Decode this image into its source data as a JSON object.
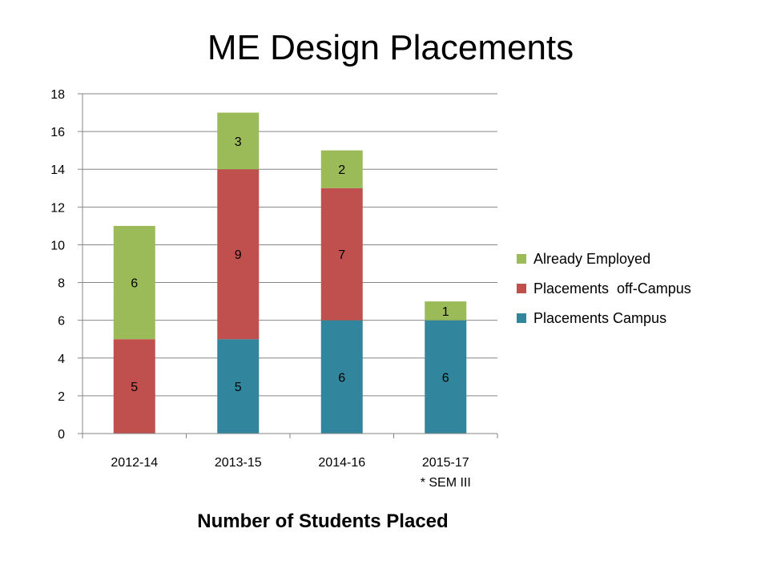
{
  "title": "ME Design Placements",
  "chart_data": {
    "type": "bar",
    "stacked": true,
    "title": "ME Design Placements",
    "xlabel": "Number of Students Placed",
    "ylabel": "",
    "categories": [
      "2012-14",
      "2013-15",
      "2014-16",
      "2015-17"
    ],
    "category_note": "* SEM III",
    "ylim": [
      0,
      18
    ],
    "yticks": [
      0,
      2,
      4,
      6,
      8,
      10,
      12,
      14,
      16,
      18
    ],
    "grid": true,
    "legend": "right",
    "series": [
      {
        "name": "Placements Campus",
        "color": "#31859C",
        "values": [
          0,
          5,
          6,
          6
        ]
      },
      {
        "name": "Placements  off-Campus",
        "color": "#C0504D",
        "values": [
          5,
          9,
          7,
          0
        ]
      },
      {
        "name": "Already Employed",
        "color": "#9BBB59",
        "values": [
          6,
          3,
          2,
          1
        ]
      }
    ]
  }
}
